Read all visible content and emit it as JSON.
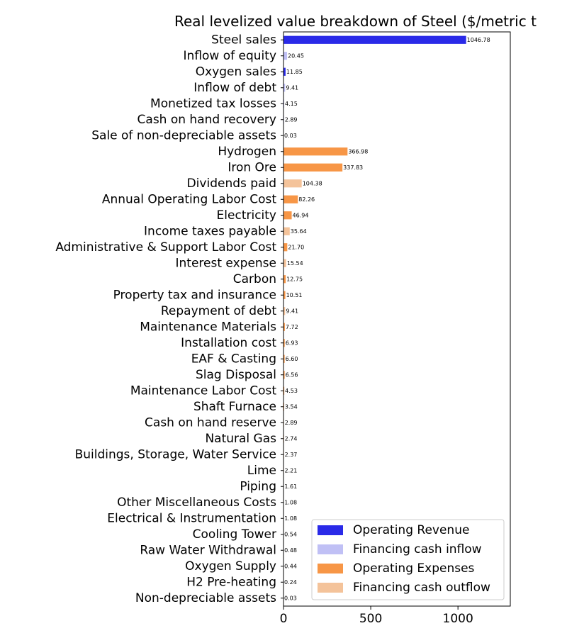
{
  "chart_data": {
    "type": "bar",
    "orientation": "horizontal",
    "title": "Real levelized value breakdown of Steel ($/metric t",
    "xlabel": "",
    "ylabel": "",
    "xlim": [
      0,
      1300
    ],
    "xticks": [
      0,
      500,
      1000
    ],
    "grid": false,
    "legend_position": "lower-right",
    "groups": [
      {
        "name": "Operating Revenue",
        "color": "#2a2ae8"
      },
      {
        "name": "Financing cash inflow",
        "color": "#c0c0f5"
      },
      {
        "name": "Operating Expenses",
        "color": "#f79646"
      },
      {
        "name": "Financing cash outflow",
        "color": "#f4c39a"
      }
    ],
    "bars": [
      {
        "label": "Steel sales",
        "value": 1046.78,
        "value_label": "1046.78",
        "group": 0
      },
      {
        "label": "Inflow of equity",
        "value": 20.45,
        "value_label": "20.45",
        "group": 1
      },
      {
        "label": "Oxygen sales",
        "value": 11.85,
        "value_label": "11.85",
        "group": 0
      },
      {
        "label": "Inflow of debt",
        "value": 9.41,
        "value_label": "9.41",
        "group": 1
      },
      {
        "label": "Monetized tax losses",
        "value": 4.15,
        "value_label": "4.15",
        "group": 1
      },
      {
        "label": "Cash on hand recovery",
        "value": 2.89,
        "value_label": "2.89",
        "group": 1
      },
      {
        "label": "Sale of non-depreciable assets",
        "value": 0.03,
        "value_label": "0.03",
        "group": 1
      },
      {
        "label": "Hydrogen",
        "value": 366.98,
        "value_label": "366.98",
        "group": 2
      },
      {
        "label": "Iron Ore",
        "value": 337.83,
        "value_label": "337.83",
        "group": 2
      },
      {
        "label": "Dividends paid",
        "value": 104.38,
        "value_label": "104.38",
        "group": 3
      },
      {
        "label": "Annual Operating Labor Cost",
        "value": 82.26,
        "value_label": "82.26",
        "group": 2
      },
      {
        "label": "Electricity",
        "value": 46.94,
        "value_label": "46.94",
        "group": 2
      },
      {
        "label": "Income taxes payable",
        "value": 35.64,
        "value_label": "35.64",
        "group": 3
      },
      {
        "label": "Administrative & Support Labor Cost",
        "value": 21.7,
        "value_label": "21.70",
        "group": 2
      },
      {
        "label": "Interest expense",
        "value": 15.54,
        "value_label": "15.54",
        "group": 3
      },
      {
        "label": "Carbon",
        "value": 12.75,
        "value_label": "12.75",
        "group": 2
      },
      {
        "label": "Property tax and insurance",
        "value": 10.51,
        "value_label": "10.51",
        "group": 2
      },
      {
        "label": "Repayment of debt",
        "value": 9.41,
        "value_label": "9.41",
        "group": 3
      },
      {
        "label": "Maintenance Materials",
        "value": 7.72,
        "value_label": "7.72",
        "group": 2
      },
      {
        "label": "Installation cost",
        "value": 6.93,
        "value_label": "6.93",
        "group": 2
      },
      {
        "label": "EAF & Casting",
        "value": 6.6,
        "value_label": "6.60",
        "group": 2
      },
      {
        "label": "Slag Disposal",
        "value": 6.56,
        "value_label": "6.56",
        "group": 2
      },
      {
        "label": "Maintenance Labor Cost",
        "value": 4.53,
        "value_label": "4.53",
        "group": 2
      },
      {
        "label": "Shaft Furnace",
        "value": 3.54,
        "value_label": "3.54",
        "group": 2
      },
      {
        "label": "Cash on hand reserve",
        "value": 2.89,
        "value_label": "2.89",
        "group": 3
      },
      {
        "label": "Natural Gas",
        "value": 2.74,
        "value_label": "2.74",
        "group": 2
      },
      {
        "label": "Buildings, Storage, Water Service",
        "value": 2.37,
        "value_label": "2.37",
        "group": 2
      },
      {
        "label": "Lime",
        "value": 2.21,
        "value_label": "2.21",
        "group": 2
      },
      {
        "label": "Piping",
        "value": 1.61,
        "value_label": "1.61",
        "group": 2
      },
      {
        "label": "Other Miscellaneous Costs",
        "value": 1.08,
        "value_label": "1.08",
        "group": 2
      },
      {
        "label": "Electrical & Instrumentation",
        "value": 1.08,
        "value_label": "1.08",
        "group": 2
      },
      {
        "label": "Cooling Tower",
        "value": 0.54,
        "value_label": "0.54",
        "group": 2
      },
      {
        "label": "Raw Water Withdrawal",
        "value": 0.48,
        "value_label": "0.48",
        "group": 2
      },
      {
        "label": "Oxygen Supply",
        "value": 0.44,
        "value_label": "0.44",
        "group": 2
      },
      {
        "label": "H2 Pre-heating",
        "value": 0.24,
        "value_label": "0.24",
        "group": 2
      },
      {
        "label": "Non-depreciable assets",
        "value": 0.03,
        "value_label": "0.03",
        "group": 2
      }
    ]
  }
}
